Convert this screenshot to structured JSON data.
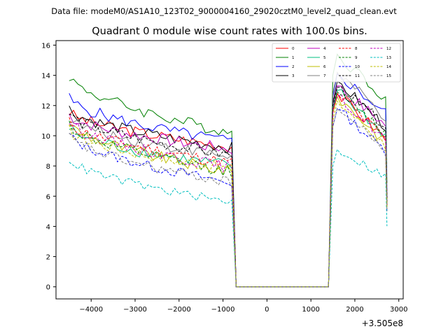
{
  "chart_data": {
    "type": "line",
    "suptitle": "Data file: modeM0/AS1A10_123T02_9000004160_29020cztM0_level2_quad_clean.evt",
    "title": "Quadrant 0 module wise count rates with 100.0s bins.",
    "xlabel": "",
    "ylabel": "",
    "x_offset_label": "+3.505e8",
    "xlim": [
      -4800,
      3100
    ],
    "ylim": [
      -0.8,
      16.3
    ],
    "x_ticks": [
      -4000,
      -3000,
      -2000,
      -1000,
      0,
      1000,
      2000,
      3000
    ],
    "x_tick_labels": [
      "−4000",
      "−3000",
      "−2000",
      "−1000",
      "0",
      "1000",
      "2000",
      "3000"
    ],
    "y_ticks": [
      0,
      2,
      4,
      6,
      8,
      10,
      12,
      14,
      16
    ],
    "y_tick_labels": [
      "0",
      "2",
      "4",
      "6",
      "8",
      "10",
      "12",
      "14",
      "16"
    ],
    "grid": false,
    "legend_position": "top-right",
    "legend_columns": 4,
    "x_spec": {
      "seg1_start": -4500,
      "seg1_end": -800,
      "gap_start": -700,
      "gap_end": 1400,
      "seg2_start": 1500,
      "seg2_end": 2700,
      "step": 100
    },
    "series": [
      {
        "name": "0",
        "color": "#ff0000",
        "dash": "solid",
        "seg1_start": 11.6,
        "seg1_end": 9.3,
        "seg2_start": 11.7,
        "seg2_peak": 12.8,
        "seg2_end": 9.8,
        "noise": 0.4
      },
      {
        "name": "1",
        "color": "#008000",
        "dash": "solid",
        "seg1_start": 14.0,
        "seg1_end": 10.2,
        "seg2_start": 14.0,
        "seg2_peak": 15.4,
        "seg2_end": 12.5,
        "noise": 0.4
      },
      {
        "name": "2",
        "color": "#0000ff",
        "dash": "solid",
        "seg1_start": 12.5,
        "seg1_end": 9.6,
        "seg2_start": 12.6,
        "seg2_peak": 14.1,
        "seg2_end": 11.5,
        "noise": 0.4
      },
      {
        "name": "3",
        "color": "#000000",
        "dash": "solid",
        "seg1_start": 11.8,
        "seg1_end": 9.2,
        "seg2_start": 12.2,
        "seg2_peak": 13.6,
        "seg2_end": 10.6,
        "noise": 0.4
      },
      {
        "name": "4",
        "color": "#bf00bf",
        "dash": "solid",
        "seg1_start": 11.4,
        "seg1_end": 9.1,
        "seg2_start": 12.0,
        "seg2_peak": 13.3,
        "seg2_end": 10.7,
        "noise": 0.4
      },
      {
        "name": "5",
        "color": "#00bf80",
        "dash": "solid",
        "seg1_start": 10.5,
        "seg1_end": 8.0,
        "seg2_start": 11.8,
        "seg2_peak": 13.0,
        "seg2_end": 10.0,
        "noise": 0.4
      },
      {
        "name": "6",
        "color": "#bfbf00",
        "dash": "solid",
        "seg1_start": 10.9,
        "seg1_end": 7.6,
        "seg2_start": 11.5,
        "seg2_peak": 12.6,
        "seg2_end": 9.6,
        "noise": 0.4
      },
      {
        "name": "7",
        "color": "#808080",
        "dash": "solid",
        "seg1_start": 11.2,
        "seg1_end": 8.6,
        "seg2_start": 12.8,
        "seg2_peak": 14.2,
        "seg2_end": 11.2,
        "noise": 0.4
      },
      {
        "name": "8",
        "color": "#ff0000",
        "dash": "dashed",
        "seg1_start": 10.9,
        "seg1_end": 8.2,
        "seg2_start": 11.5,
        "seg2_peak": 12.8,
        "seg2_end": 9.8,
        "noise": 0.4
      },
      {
        "name": "9",
        "color": "#008000",
        "dash": "dashed",
        "seg1_start": 10.8,
        "seg1_end": 7.6,
        "seg2_start": 11.7,
        "seg2_peak": 12.9,
        "seg2_end": 10.2,
        "noise": 0.4
      },
      {
        "name": "10",
        "color": "#0000ff",
        "dash": "dashed",
        "seg1_start": 10.1,
        "seg1_end": 6.9,
        "seg2_start": 10.6,
        "seg2_peak": 11.8,
        "seg2_end": 9.0,
        "noise": 0.35
      },
      {
        "name": "11",
        "color": "#000000",
        "dash": "dashed",
        "seg1_start": 11.5,
        "seg1_end": 8.7,
        "seg2_start": 12.0,
        "seg2_peak": 13.2,
        "seg2_end": 10.7,
        "noise": 0.4
      },
      {
        "name": "12",
        "color": "#bf00bf",
        "dash": "dashed",
        "seg1_start": 11.0,
        "seg1_end": 7.9,
        "seg2_start": 11.8,
        "seg2_peak": 12.6,
        "seg2_end": 9.8,
        "noise": 0.4
      },
      {
        "name": "13",
        "color": "#00bfbf",
        "dash": "dashed",
        "seg1_start": 8.5,
        "seg1_end": 5.6,
        "seg2_start": 8.0,
        "seg2_peak": 9.1,
        "seg2_end": 7.3,
        "noise": 0.3
      },
      {
        "name": "14",
        "color": "#bfbf00",
        "dash": "dashed",
        "seg1_start": 10.4,
        "seg1_end": 7.8,
        "seg2_start": 11.0,
        "seg2_peak": 12.3,
        "seg2_end": 9.4,
        "noise": 0.4
      },
      {
        "name": "15",
        "color": "#808080",
        "dash": "dashed",
        "seg1_start": 10.0,
        "seg1_end": 6.9,
        "seg2_start": 10.6,
        "seg2_peak": 11.8,
        "seg2_end": 9.1,
        "noise": 0.35
      }
    ]
  }
}
